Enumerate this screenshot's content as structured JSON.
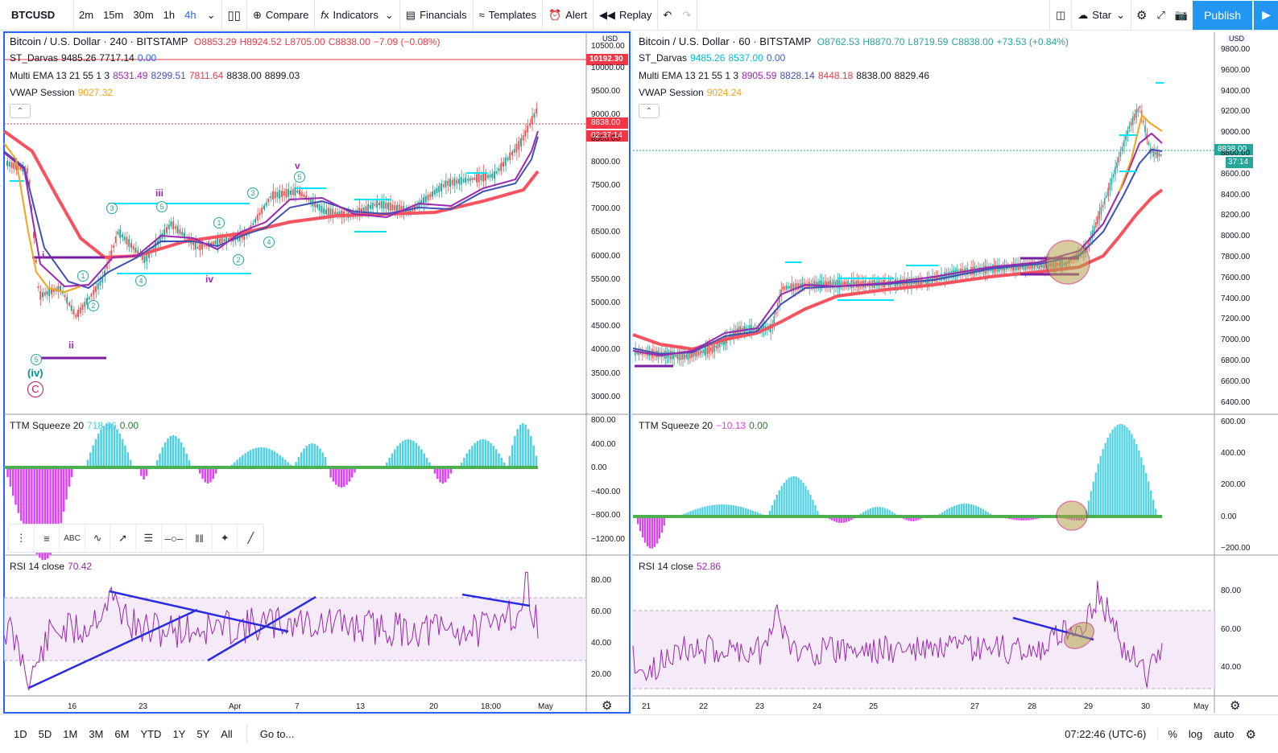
{
  "toolbar": {
    "symbol": "BTCUSD",
    "timeframes": [
      "2m",
      "15m",
      "30m",
      "1h",
      "4h"
    ],
    "active_timeframe": "4h",
    "compare": "Compare",
    "indicators": "Indicators",
    "financials": "Financials",
    "templates": "Templates",
    "alert": "Alert",
    "replay": "Replay",
    "star": "Star",
    "publish": "Publish"
  },
  "left_chart": {
    "title": "Bitcoin / U.S. Dollar · 240 · BITSTAMP",
    "ohlc": {
      "o": "O8853.29",
      "h": "H8924.52",
      "l": "L8705.00",
      "c": "C8838.00",
      "chg": "−7.09 (−0.08%)"
    },
    "darvas": {
      "label": "ST_Darvas",
      "v1": "9485.26",
      "v2": "7717.14",
      "v3": "0.00"
    },
    "ema": {
      "label": "Multi EMA 13 21 55 1 3",
      "v1": "8531.49",
      "v2": "8299.51",
      "v3": "7811.64",
      "v4": "8838.00",
      "v5": "8899.03"
    },
    "vwap": {
      "label": "VWAP Session",
      "v1": "9027.32"
    },
    "currency": "USD",
    "price_ticks": [
      "10500.00",
      "10000.00",
      "9500.00",
      "9000.00",
      "8500.00",
      "8000.00",
      "7500.00",
      "7000.00",
      "6500.00",
      "6000.00",
      "5500.00",
      "5000.00",
      "4500.00",
      "4000.00",
      "3500.00",
      "3000.00"
    ],
    "red_line_label": "10192.30",
    "price_label": "8838.00",
    "countdown": "02:37:14",
    "waves": {
      "v": "v",
      "iii": "iii",
      "iv": "iv",
      "ii": "ii",
      "i": "i",
      "c1": "1",
      "c2": "2",
      "c3": "3",
      "c4": "4",
      "c5": "5",
      "iv_paren": "(iv)",
      "c_circle": "C"
    },
    "ttm": {
      "label": "TTM Squeeze 20",
      "v1": "718.86",
      "v2": "0.00",
      "ticks": [
        "800.00",
        "400.00",
        "0.00",
        "−400.00",
        "−800.00",
        "−1200.00"
      ]
    },
    "rsi": {
      "label": "RSI 14 close",
      "v1": "70.42",
      "ticks": [
        "80.00",
        "60.00",
        "40.00",
        "20.00"
      ]
    },
    "x_labels": [
      "16",
      "23",
      "Apr",
      "7",
      "13",
      "20",
      "18:00",
      "May"
    ]
  },
  "right_chart": {
    "title": "Bitcoin / U.S. Dollar · 60 · BITSTAMP",
    "ohlc": {
      "o": "O8762.53",
      "h": "H8870.70",
      "l": "L8719.59",
      "c": "C8838.00",
      "chg": "+73.53 (+0.84%)"
    },
    "darvas": {
      "label": "ST_Darvas",
      "v1": "9485.26",
      "v2": "8537.00",
      "v3": "0.00"
    },
    "ema": {
      "label": "Multi EMA 13 21 55 1 3",
      "v1": "8905.59",
      "v2": "8828.14",
      "v3": "8448.18",
      "v4": "8838.00",
      "v5": "8829.46"
    },
    "vwap": {
      "label": "VWAP Session",
      "v1": "9024.24"
    },
    "currency": "USD",
    "price_ticks": [
      "9800.00",
      "9600.00",
      "9400.00",
      "9200.00",
      "9000.00",
      "8800.00",
      "8600.00",
      "8400.00",
      "8200.00",
      "8000.00",
      "7800.00",
      "7600.00",
      "7400.00",
      "7200.00",
      "7000.00",
      "6800.00",
      "6600.00",
      "6400.00"
    ],
    "price_label": "8838.00",
    "countdown": "37:14",
    "ttm": {
      "label": "TTM Squeeze 20",
      "v1": "−10.13",
      "v2": "0.00",
      "ticks": [
        "600.00",
        "400.00",
        "200.00",
        "0.00",
        "−200.00"
      ]
    },
    "rsi": {
      "label": "RSI 14 close",
      "v1": "52.86",
      "ticks": [
        "80.00",
        "60.00",
        "40.00"
      ]
    },
    "x_labels": [
      "21",
      "22",
      "23",
      "24",
      "25",
      "27",
      "28",
      "29",
      "30",
      "May"
    ]
  },
  "bottombar": {
    "ranges": [
      "1D",
      "5D",
      "1M",
      "3M",
      "6M",
      "YTD",
      "1Y",
      "5Y",
      "All"
    ],
    "goto": "Go to...",
    "time": "07:22:46 (UTC-6)",
    "percent": "%",
    "log": "log",
    "auto": "auto"
  },
  "colors": {
    "ema_fast": "#f7a21b",
    "ema_mid": "#9c27b0",
    "ema_slow": "#3f51b5",
    "ema_long": "#f23645",
    "darvas": "#00e5ff",
    "up": "#26a69a",
    "down": "#ef5350",
    "rsi": "#9c27b0",
    "ttm_pos": "#4dd0e1",
    "ttm_neg": "#e040fb",
    "accent": "#2962ff"
  }
}
